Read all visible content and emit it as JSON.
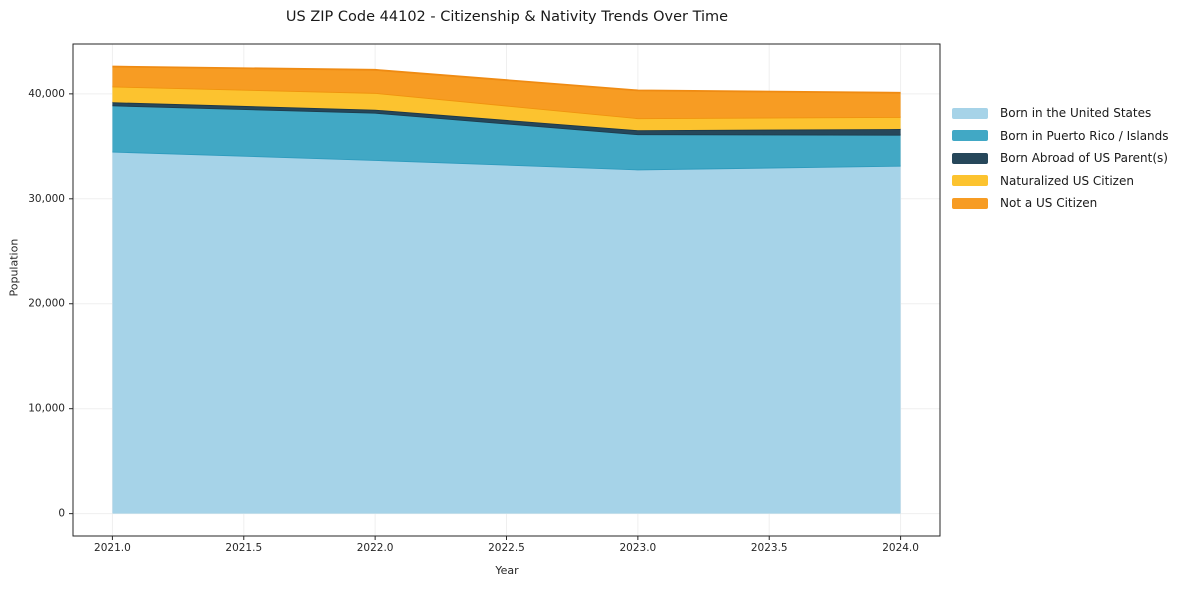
{
  "title": "US ZIP Code 44102 - Citizenship & Nativity Trends Over Time",
  "chart_data": {
    "type": "area",
    "stacked": true,
    "title": "US ZIP Code 44102 - Citizenship & Nativity Trends Over Time",
    "xlabel": "Year",
    "ylabel": "Population",
    "x": [
      2021,
      2022,
      2023,
      2024
    ],
    "xticks": [
      2021.0,
      2021.5,
      2022.0,
      2022.5,
      2023.0,
      2023.5,
      2024.0
    ],
    "xtick_labels": [
      "2021.0",
      "2021.5",
      "2022.0",
      "2022.5",
      "2023.0",
      "2023.5",
      "2024.0"
    ],
    "yticks": [
      0,
      10000,
      20000,
      30000,
      40000
    ],
    "ytick_labels": [
      "0",
      "10,000",
      "20,000",
      "30,000",
      "40,000"
    ],
    "xlim": [
      2020.85,
      2024.15
    ],
    "ylim": [
      -2131,
      44751
    ],
    "grid": true,
    "grid_color": "#efefef",
    "spine_color": "#262626",
    "legend_position": "right-outside",
    "series": [
      {
        "name": "Born in the United States",
        "values": [
          34500,
          33700,
          32800,
          33150
        ],
        "fill": "#a6d3e8",
        "edge": "#2e9bbd"
      },
      {
        "name": "Born in Puerto Rico / Islands",
        "values": [
          4400,
          4500,
          3350,
          2950
        ],
        "fill": "#41a8c5",
        "edge": "#1e3c4c"
      },
      {
        "name": "Born Abroad of US Parent(s)",
        "values": [
          300,
          290,
          380,
          550
        ],
        "fill": "#26475a",
        "edge": "#1d3949"
      },
      {
        "name": "Naturalized US Citizen",
        "values": [
          1500,
          1600,
          1150,
          1150
        ],
        "fill": "#fcc32f",
        "edge": "#f0930e"
      },
      {
        "name": "Not a US Citizen",
        "values": [
          1900,
          2200,
          2650,
          2300
        ],
        "fill": "#f79c23",
        "edge": "#ef8b13"
      }
    ]
  }
}
